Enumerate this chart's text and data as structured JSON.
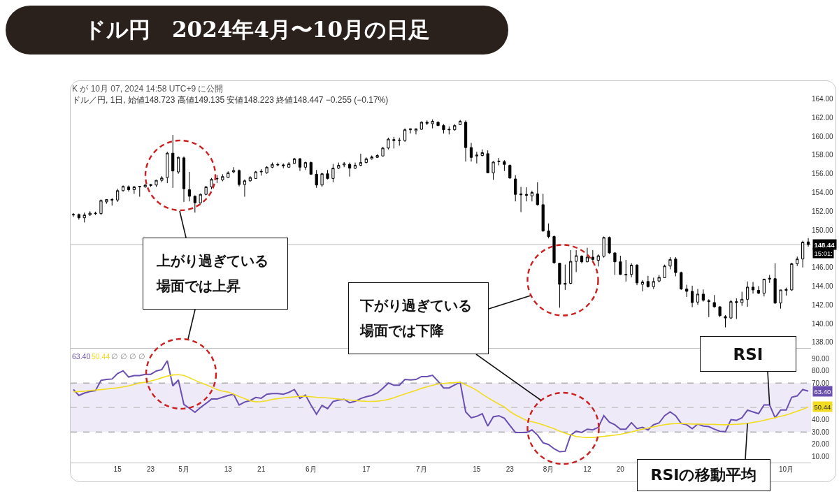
{
  "chart_data": [
    {
      "type": "candlestick",
      "title": "ドル円　2024年4月〜10月の日足",
      "subtitle": "ドル／円, 1日, 始値148.723 高値149.135 安値148.223 終値148.447 −0.255 (−0.17%)",
      "annotations": [
        "K が 10月 07, 2024 14:58 UTC+9 に公開",
        "15:01:",
        "上がり過ぎている場面では上昇",
        "下がり過ぎている場面では下降"
      ],
      "categories": [
        null,
        null,
        null,
        null,
        null,
        null,
        null,
        null,
        null,
        null,
        null,
        null,
        null,
        null,
        null,
        null,
        null,
        null,
        null,
        null,
        null,
        null,
        null,
        null,
        null,
        null,
        null,
        null,
        null,
        null,
        null,
        null,
        null,
        null,
        null,
        null,
        null,
        null,
        null,
        null,
        null,
        null,
        null,
        null,
        null,
        null,
        null,
        null,
        null,
        null,
        null,
        null,
        null,
        null,
        null,
        null,
        null,
        null,
        null,
        null,
        null,
        null,
        null,
        null,
        null,
        null,
        null,
        null,
        null,
        null,
        null,
        null,
        null,
        null,
        null,
        null,
        null,
        null,
        null,
        null,
        null,
        null,
        null,
        null,
        null,
        null,
        null,
        null,
        null,
        null,
        null,
        null,
        null,
        null,
        null,
        null,
        null,
        null,
        null,
        null,
        null,
        null,
        null,
        null,
        null,
        null,
        null,
        null,
        null,
        null,
        null,
        null,
        null,
        null,
        null,
        null,
        null,
        null,
        null,
        null,
        null,
        null,
        null,
        null,
        null,
        null,
        null,
        null,
        null,
        null,
        null,
        null,
        null,
        null
      ],
      "ohlc": [
        [
          151.6,
          151.8,
          151.4,
          151.65
        ],
        [
          151.65,
          151.75,
          151.1,
          151.3
        ],
        [
          151.3,
          151.85,
          150.8,
          151.6
        ],
        [
          151.6,
          152.0,
          151.5,
          151.8
        ],
        [
          151.8,
          151.95,
          151.6,
          151.75
        ],
        [
          151.75,
          153.25,
          151.6,
          153.15
        ],
        [
          153.0,
          153.3,
          152.8,
          153.25
        ],
        [
          153.25,
          153.4,
          152.6,
          153.2
        ],
        [
          153.2,
          154.4,
          153.0,
          154.2
        ],
        [
          154.2,
          154.75,
          154.1,
          154.65
        ],
        [
          154.6,
          154.75,
          154.1,
          154.3
        ],
        [
          154.3,
          154.7,
          153.85,
          154.6
        ],
        [
          154.6,
          154.7,
          153.55,
          154.65
        ],
        [
          154.6,
          154.85,
          154.5,
          154.8
        ],
        [
          154.75,
          154.9,
          154.6,
          154.85
        ],
        [
          154.8,
          155.35,
          154.6,
          155.3
        ],
        [
          155.3,
          155.75,
          155.1,
          155.55
        ],
        [
          155.6,
          158.35,
          155.0,
          158.2
        ],
        [
          158.2,
          160.15,
          154.5,
          156.3
        ],
        [
          156.2,
          157.85,
          156.0,
          157.75
        ],
        [
          157.7,
          157.85,
          153.0,
          154.4
        ],
        [
          154.3,
          156.2,
          153.05,
          153.6
        ],
        [
          153.6,
          153.7,
          151.85,
          152.9
        ],
        [
          152.9,
          153.9,
          152.8,
          153.8
        ],
        [
          153.8,
          154.7,
          153.7,
          154.6
        ],
        [
          154.6,
          155.55,
          154.35,
          155.4
        ],
        [
          155.45,
          155.85,
          155.0,
          155.5
        ],
        [
          155.35,
          155.95,
          155.2,
          155.7
        ],
        [
          155.6,
          156.25,
          155.55,
          156.1
        ],
        [
          156.2,
          156.7,
          156.05,
          156.35
        ],
        [
          156.35,
          156.45,
          154.65,
          154.85
        ],
        [
          154.85,
          155.4,
          153.55,
          155.25
        ],
        [
          155.25,
          155.75,
          155.15,
          155.6
        ],
        [
          155.5,
          156.3,
          155.45,
          156.2
        ],
        [
          156.2,
          156.5,
          155.8,
          156.25
        ],
        [
          156.1,
          156.8,
          156.0,
          156.7
        ],
        [
          156.7,
          157.2,
          156.6,
          157.0
        ],
        [
          157.0,
          157.2,
          156.8,
          156.95
        ],
        [
          156.95,
          157.1,
          156.6,
          156.85
        ],
        [
          156.7,
          157.25,
          156.65,
          157.05
        ],
        [
          157.1,
          157.7,
          157.05,
          157.6
        ],
        [
          157.6,
          157.7,
          156.3,
          156.7
        ],
        [
          156.7,
          157.3,
          156.4,
          157.2
        ],
        [
          157.2,
          157.3,
          155.9,
          155.95
        ],
        [
          155.95,
          156.4,
          154.5,
          154.8
        ],
        [
          154.8,
          156.1,
          154.6,
          156.0
        ],
        [
          156.0,
          156.4,
          155.4,
          155.5
        ],
        [
          155.5,
          157.05,
          155.1,
          156.6
        ],
        [
          156.6,
          157.2,
          156.5,
          156.9
        ],
        [
          156.95,
          157.25,
          156.7,
          157.05
        ],
        [
          157.0,
          157.2,
          155.7,
          156.6
        ],
        [
          156.6,
          157.2,
          156.5,
          156.9
        ],
        [
          156.9,
          158.15,
          156.8,
          157.2
        ],
        [
          157.2,
          157.75,
          157.1,
          157.6
        ],
        [
          157.6,
          157.95,
          157.5,
          157.8
        ],
        [
          157.75,
          158.1,
          157.7,
          157.95
        ],
        [
          157.9,
          158.85,
          157.85,
          158.75
        ],
        [
          158.75,
          159.85,
          158.6,
          159.7
        ],
        [
          159.65,
          159.95,
          158.7,
          159.55
        ],
        [
          159.55,
          159.85,
          159.0,
          159.6
        ],
        [
          159.55,
          160.85,
          159.4,
          160.7
        ],
        [
          160.7,
          160.85,
          160.3,
          160.8
        ],
        [
          160.6,
          160.85,
          160.2,
          160.8
        ],
        [
          160.75,
          161.6,
          160.7,
          161.5
        ],
        [
          161.5,
          161.7,
          161.2,
          161.4
        ],
        [
          161.35,
          161.8,
          160.85,
          161.6
        ],
        [
          161.5,
          161.6,
          161.1,
          161.15
        ],
        [
          161.15,
          161.3,
          160.3,
          160.7
        ],
        [
          160.75,
          161.05,
          160.2,
          160.7
        ],
        [
          160.7,
          161.3,
          160.6,
          161.15
        ],
        [
          161.25,
          161.75,
          161.2,
          161.6
        ],
        [
          161.5,
          161.7,
          157.3,
          158.8
        ],
        [
          158.8,
          159.3,
          157.3,
          157.75
        ],
        [
          157.9,
          158.35,
          157.1,
          158.0
        ],
        [
          157.95,
          158.6,
          157.85,
          158.25
        ],
        [
          158.15,
          158.5,
          156.05,
          156.1
        ],
        [
          156.1,
          157.35,
          155.35,
          157.25
        ],
        [
          157.3,
          157.7,
          156.9,
          157.35
        ],
        [
          157.3,
          157.45,
          156.3,
          157.0
        ],
        [
          156.9,
          157.0,
          155.45,
          155.55
        ],
        [
          155.45,
          155.85,
          153.05,
          153.8
        ],
        [
          153.85,
          154.6,
          151.9,
          153.75
        ],
        [
          153.8,
          154.55,
          153.05,
          153.7
        ],
        [
          153.65,
          154.2,
          153.05,
          154.0
        ],
        [
          153.85,
          155.1,
          152.6,
          152.7
        ],
        [
          152.7,
          153.85,
          149.8,
          149.9
        ],
        [
          149.9,
          150.7,
          149.1,
          149.3
        ],
        [
          149.3,
          149.4,
          146.4,
          146.5
        ],
        [
          146.45,
          146.5,
          141.7,
          144.2
        ],
        [
          144.2,
          146.3,
          143.6,
          144.3
        ],
        [
          144.3,
          147.85,
          144.2,
          146.65
        ],
        [
          146.65,
          147.85,
          145.5,
          147.25
        ],
        [
          147.2,
          147.3,
          146.45,
          146.6
        ],
        [
          146.6,
          148.1,
          146.55,
          147.1
        ],
        [
          147.1,
          147.85,
          146.7,
          146.85
        ],
        [
          146.75,
          147.4,
          146.1,
          147.25
        ],
        [
          147.2,
          149.3,
          147.05,
          149.2
        ],
        [
          149.2,
          149.3,
          147.45,
          147.55
        ],
        [
          147.55,
          147.6,
          145.2,
          146.6
        ],
        [
          146.6,
          147.25,
          145.2,
          145.25
        ],
        [
          145.25,
          146.8,
          144.5,
          145.2
        ],
        [
          145.25,
          146.45,
          144.95,
          146.25
        ],
        [
          146.25,
          146.35,
          144.1,
          144.35
        ],
        [
          144.2,
          144.65,
          143.45,
          144.45
        ],
        [
          144.5,
          145.1,
          143.85,
          143.95
        ],
        [
          143.95,
          144.9,
          143.7,
          144.5
        ],
        [
          144.55,
          145.2,
          144.4,
          144.95
        ],
        [
          144.9,
          146.3,
          144.85,
          146.15
        ],
        [
          146.15,
          147.1,
          145.8,
          146.85
        ],
        [
          146.9,
          147.1,
          145.05,
          145.45
        ],
        [
          145.45,
          145.55,
          143.6,
          143.7
        ],
        [
          143.7,
          144.15,
          142.85,
          143.45
        ],
        [
          143.45,
          144.05,
          141.75,
          142.25
        ],
        [
          142.3,
          143.7,
          142.0,
          143.15
        ],
        [
          143.15,
          143.65,
          142.35,
          142.5
        ],
        [
          142.45,
          142.6,
          140.7,
          142.35
        ],
        [
          142.25,
          143.05,
          141.7,
          141.8
        ],
        [
          141.8,
          141.85,
          140.7,
          140.85
        ],
        [
          140.75,
          140.9,
          139.6,
          140.6
        ],
        [
          140.6,
          142.55,
          140.5,
          142.35
        ],
        [
          142.35,
          142.7,
          140.5,
          142.25
        ],
        [
          142.25,
          143.4,
          141.9,
          142.6
        ],
        [
          142.6,
          144.5,
          141.8,
          143.9
        ],
        [
          143.9,
          144.45,
          143.2,
          143.6
        ],
        [
          143.55,
          144.0,
          143.15,
          143.25
        ],
        [
          143.25,
          144.8,
          142.9,
          144.75
        ],
        [
          144.75,
          145.2,
          144.35,
          144.85
        ],
        [
          144.8,
          146.45,
          142.1,
          142.2
        ],
        [
          142.2,
          143.6,
          141.6,
          143.6
        ],
        [
          143.55,
          143.85,
          143.0,
          143.65
        ],
        [
          143.6,
          146.5,
          143.5,
          146.4
        ],
        [
          146.4,
          147.15,
          146.15,
          146.9
        ],
        [
          146.9,
          148.85,
          146.0,
          148.7
        ],
        [
          148.723,
          149.135,
          148.223,
          148.447
        ]
      ],
      "color": "#000000",
      "ylim": [
        137.4,
        165.9
      ],
      "yticks": [
        {
          "value": 138,
          "label": "138.00"
        },
        {
          "value": 140,
          "label": "140.00"
        },
        {
          "value": 142,
          "label": "142.00"
        },
        {
          "value": 144,
          "label": "144.00"
        },
        {
          "value": 146,
          "label": "146.00"
        },
        {
          "value": 150,
          "label": "150.00"
        },
        {
          "value": 152,
          "label": "152.00"
        },
        {
          "value": 154,
          "label": "154.00"
        },
        {
          "value": 156,
          "label": "156.00"
        },
        {
          "value": 158,
          "label": "158.00"
        },
        {
          "value": 160,
          "label": "160.00"
        },
        {
          "value": 162,
          "label": "162.00"
        },
        {
          "value": 164,
          "label": "164.00"
        }
      ],
      "ref_lines": [
        {
          "axis": "y",
          "value": 148.44,
          "label": "148.44",
          "color": "#b8b8b8"
        }
      ],
      "tick_labels": "y"
    },
    {
      "type": "line",
      "annotations": [
        "63.40",
        "50.44",
        "∅ ∅ ∅ ∅",
        {
          "text": "RSI",
          "y": 52.1
        },
        {
          "text": "RSIの移動平均",
          "y": 36.9
        }
      ],
      "categories": [
        null,
        null,
        null,
        null,
        null,
        null,
        null,
        null,
        "15",
        null,
        null,
        null,
        null,
        null,
        "23",
        null,
        null,
        null,
        null,
        null,
        "5月",
        null,
        null,
        null,
        null,
        null,
        null,
        null,
        "13",
        null,
        null,
        null,
        null,
        null,
        "21",
        null,
        null,
        null,
        null,
        null,
        null,
        null,
        null,
        "6月",
        null,
        null,
        null,
        null,
        null,
        null,
        null,
        null,
        null,
        "17",
        null,
        null,
        null,
        null,
        null,
        null,
        null,
        null,
        null,
        "7月",
        null,
        null,
        null,
        null,
        null,
        null,
        null,
        null,
        null,
        "15",
        null,
        null,
        null,
        null,
        null,
        "23",
        null,
        null,
        null,
        null,
        null,
        null,
        "8月",
        null,
        null,
        null,
        null,
        null,
        null,
        "12",
        null,
        null,
        null,
        null,
        null,
        "20",
        null,
        null,
        null,
        null,
        null,
        null,
        null,
        null,
        null,
        null,
        null,
        null,
        null,
        null,
        null,
        null,
        null,
        null,
        null,
        null,
        null,
        null,
        null,
        null,
        null,
        null,
        null,
        null,
        null,
        "10月",
        null,
        null,
        null,
        null
      ],
      "series": [
        {
          "color": "#6a4fb0",
          "values": [
            64.7,
            59.8,
            61.8,
            63.1,
            63.7,
            72.2,
            72.9,
            73.3,
            77.8,
            80.0,
            74.9,
            76.1,
            76.1,
            77.1,
            77.1,
            79.8,
            81.0,
            88.2,
            67.6,
            72.5,
            52.5,
            49.4,
            46.1,
            50.0,
            53.3,
            56.9,
            56.9,
            58.4,
            59.8,
            60.8,
            52.0,
            54.5,
            55.7,
            58.2,
            57.6,
            60.8,
            61.4,
            61.4,
            60.8,
            62.4,
            64.7,
            57.5,
            60.2,
            52.0,
            44.5,
            51.8,
            49.0,
            54.9,
            56.1,
            56.7,
            53.9,
            55.1,
            57.3,
            58.8,
            59.8,
            61.8,
            65.7,
            70.0,
            68.2,
            68.2,
            72.9,
            72.5,
            72.9,
            75.3,
            75.3,
            76.3,
            71.5,
            66.0,
            66.0,
            68.5,
            70.6,
            46.4,
            41.6,
            42.8,
            44.9,
            34.8,
            42.4,
            43.3,
            41.2,
            35.3,
            29.6,
            29.6,
            29.6,
            31.7,
            27.5,
            21.2,
            19.7,
            16.3,
            13.8,
            14.2,
            27.5,
            30.6,
            29.6,
            32.3,
            31.7,
            33.8,
            43.3,
            38.0,
            35.9,
            32.3,
            32.3,
            37.6,
            32.7,
            33.8,
            31.7,
            35.9,
            37.4,
            43.3,
            46.4,
            43.3,
            36.9,
            35.9,
            32.7,
            36.5,
            34.8,
            34.4,
            32.3,
            30.6,
            30.2,
            40.1,
            39.5,
            41.6,
            47.9,
            46.4,
            45.0,
            52.1,
            52.1,
            41.6,
            47.9,
            47.9,
            58.4,
            59.5,
            64.7,
            63.4
          ],
          "value_labels": [
            null,
            null,
            null,
            null,
            null,
            null,
            null,
            null,
            null,
            null,
            null,
            null,
            null,
            null,
            null,
            null,
            null,
            null,
            null,
            null,
            null,
            null,
            null,
            null,
            null,
            null,
            null,
            null,
            null,
            null,
            null,
            null,
            null,
            null,
            null,
            null,
            null,
            null,
            null,
            null,
            null,
            null,
            null,
            null,
            null,
            null,
            null,
            null,
            null,
            null,
            null,
            null,
            null,
            null,
            null,
            null,
            null,
            null,
            null,
            null,
            null,
            null,
            null,
            null,
            null,
            null,
            null,
            null,
            null,
            null,
            null,
            null,
            null,
            null,
            null,
            null,
            null,
            null,
            null,
            null,
            null,
            null,
            null,
            null,
            null,
            null,
            null,
            null,
            null,
            null,
            null,
            null,
            null,
            null,
            null,
            null,
            null,
            null,
            null,
            null,
            null,
            null,
            null,
            null,
            null,
            null,
            null,
            null,
            null,
            null,
            null,
            null,
            null,
            null,
            null,
            null,
            null,
            null,
            null,
            null,
            null,
            null,
            null,
            null,
            null,
            null,
            null,
            null,
            null,
            null,
            null,
            null,
            null,
            "63.40"
          ]
        },
        {
          "color": "#f2dc1f",
          "values": [
            62.8,
            63.0,
            63.3,
            63.8,
            64.2,
            64.6,
            65.1,
            65.6,
            66.1,
            66.8,
            67.7,
            68.8,
            70.0,
            70.6,
            71.7,
            72.8,
            74.3,
            75.6,
            76.6,
            76.8,
            76.2,
            74.4,
            72.3,
            70.3,
            68.6,
            66.6,
            64.7,
            63.4,
            62.6,
            61.0,
            58.9,
            57.3,
            55.6,
            54.6,
            54.8,
            55.5,
            56.6,
            57.2,
            57.8,
            58.3,
            58.7,
            59.1,
            59.2,
            58.8,
            58.4,
            58.1,
            57.8,
            57.4,
            56.9,
            56.5,
            56.1,
            55.7,
            55.3,
            55.1,
            55.0,
            55.2,
            55.7,
            56.6,
            57.9,
            59.6,
            61.1,
            62.5,
            64.0,
            65.6,
            67.0,
            68.1,
            69.2,
            69.7,
            70.0,
            70.4,
            70.6,
            68.5,
            66.5,
            64.0,
            60.9,
            58.0,
            55.4,
            52.8,
            50.4,
            46.7,
            44.0,
            41.7,
            39.4,
            38.4,
            37.2,
            35.8,
            34.2,
            32.7,
            30.7,
            29.0,
            27.7,
            26.3,
            25.8,
            25.5,
            25.5,
            25.9,
            26.4,
            26.9,
            27.4,
            28.1,
            29.0,
            30.0,
            31.2,
            32.3,
            33.3,
            34.2,
            35.1,
            36.0,
            36.6,
            36.8,
            36.9,
            36.7,
            36.5,
            36.5,
            36.4,
            36.3,
            36.2,
            36.0,
            35.9,
            36.1,
            36.3,
            36.6,
            36.9,
            37.8,
            38.5,
            39.5,
            40.6,
            41.7,
            42.8,
            43.8,
            45.4,
            46.9,
            48.6,
            50.44
          ],
          "value_labels": [
            null,
            null,
            null,
            null,
            null,
            null,
            null,
            null,
            null,
            null,
            null,
            null,
            null,
            null,
            null,
            null,
            null,
            null,
            null,
            null,
            null,
            null,
            null,
            null,
            null,
            null,
            null,
            null,
            null,
            null,
            null,
            null,
            null,
            null,
            null,
            null,
            null,
            null,
            null,
            null,
            null,
            null,
            null,
            null,
            null,
            null,
            null,
            null,
            null,
            null,
            null,
            null,
            null,
            null,
            null,
            null,
            null,
            null,
            null,
            null,
            null,
            null,
            null,
            null,
            null,
            null,
            null,
            null,
            null,
            null,
            null,
            null,
            null,
            null,
            null,
            null,
            null,
            null,
            null,
            null,
            null,
            null,
            null,
            null,
            null,
            null,
            null,
            null,
            null,
            null,
            null,
            null,
            null,
            null,
            null,
            null,
            null,
            null,
            null,
            null,
            null,
            null,
            null,
            null,
            null,
            null,
            null,
            null,
            null,
            null,
            null,
            null,
            null,
            null,
            null,
            null,
            null,
            null,
            null,
            null,
            null,
            null,
            null,
            null,
            null,
            null,
            null,
            null,
            null,
            null,
            null,
            null,
            null,
            "50.44"
          ]
        }
      ],
      "ylim": [
        5,
        97.5
      ],
      "yticks": [
        {
          "value": 10,
          "label": "10.00"
        },
        {
          "value": 20,
          "label": "20.00"
        },
        {
          "value": 30,
          "label": "30.00"
        },
        {
          "value": 40,
          "label": "40.00"
        },
        {
          "value": 70,
          "label": "70.00"
        },
        {
          "value": 80,
          "label": "80.00"
        },
        {
          "value": 90,
          "label": "90.00"
        }
      ],
      "bands": [
        {
          "axis": "y",
          "from": 30,
          "to": 70,
          "color": "#efeaf7"
        }
      ],
      "ref_lines": [
        {
          "axis": "y",
          "value": 70,
          "color": "#8a8a8a",
          "line_style": "dashed"
        },
        {
          "axis": "y",
          "value": 50,
          "color": "#b5b5b5",
          "line_style": "dashed"
        },
        {
          "axis": "y",
          "value": 30,
          "color": "#8a8a8a",
          "line_style": "dashed"
        }
      ]
    }
  ]
}
